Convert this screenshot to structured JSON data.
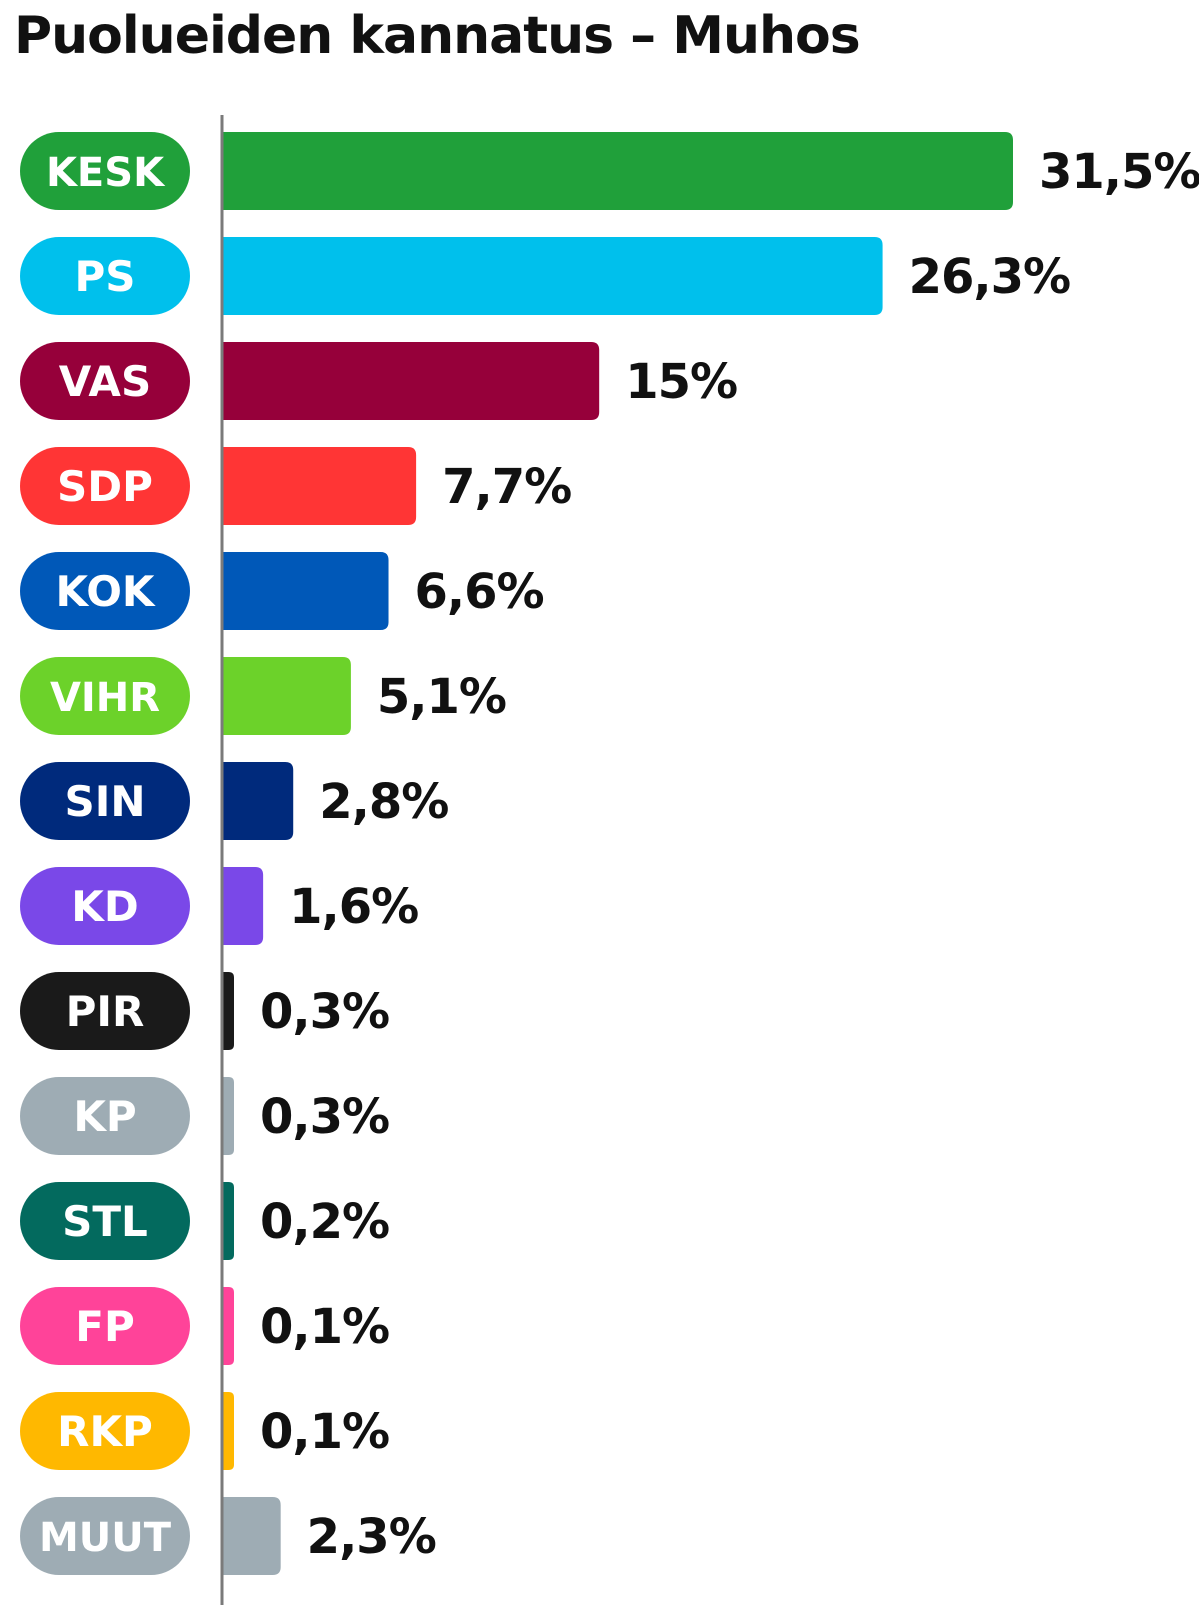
{
  "chart_data": {
    "type": "bar",
    "orientation": "horizontal",
    "title": "Puolueiden kannatus – Muhos",
    "categories": [
      "KESK",
      "PS",
      "VAS",
      "SDP",
      "KOK",
      "VIHR",
      "SIN",
      "KD",
      "PIR",
      "KP",
      "STL",
      "FP",
      "RKP",
      "MUUT"
    ],
    "values": [
      31.5,
      26.3,
      15,
      7.7,
      6.6,
      5.1,
      2.8,
      1.6,
      0.3,
      0.3,
      0.2,
      0.1,
      0.1,
      2.3
    ],
    "value_labels": [
      "31,5%",
      "26,3%",
      "15%",
      "7,7%",
      "6,6%",
      "5,1%",
      "2,8%",
      "1,6%",
      "0,3%",
      "0,3%",
      "0,2%",
      "0,1%",
      "0,1%",
      "2,3%"
    ],
    "colors": [
      "#20a03a",
      "#00c0ec",
      "#96003a",
      "#ff3535",
      "#0058b8",
      "#6cd22a",
      "#002a7c",
      "#7a48e8",
      "#1a1a1a",
      "#9eacb4",
      "#036a5e",
      "#ff4399",
      "#ffb800",
      "#9eacb4"
    ],
    "xlim": [
      0,
      31.5
    ],
    "grid": false,
    "legend": "none",
    "xlabel": "",
    "ylabel": ""
  }
}
